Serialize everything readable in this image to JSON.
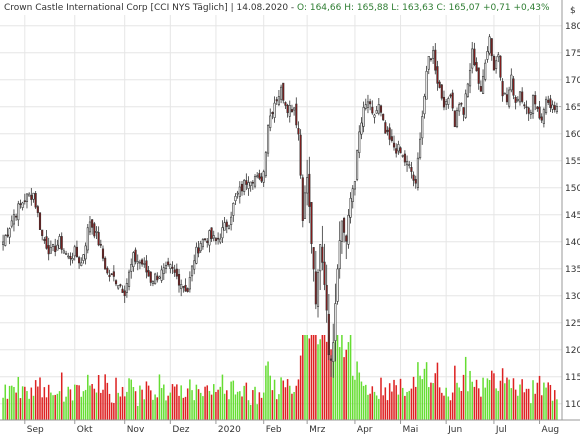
{
  "header": {
    "title": "Crown Castle International Corp [CCI NYS  Täglich]",
    "date": "14.08.2020",
    "quote": "O: 164,66 H: 165,88 L: 163,63 C: 165,07 +0,71 +0,43%"
  },
  "axis": {
    "currency": "$"
  },
  "colors": {
    "up": "#ffffff",
    "down": "#8b1a1a",
    "wick": "#333333",
    "vol_up": "#66dd33",
    "vol_down": "#dd2222",
    "grid": "#e6e6e6"
  },
  "chart_data": {
    "type": "candlestick",
    "ylim": [
      107,
      182
    ],
    "y_ticks": [
      110,
      115,
      120,
      125,
      130,
      135,
      140,
      145,
      150,
      155,
      160,
      165,
      170,
      175,
      180
    ],
    "x_tick_labels": [
      "Sep",
      "Okt",
      "Nov",
      "Dez",
      "2020",
      "Feb",
      "Mrz",
      "Apr",
      "Mai",
      "Jun",
      "Jul",
      "Aug"
    ],
    "x_tick_positions": [
      10,
      33,
      56,
      77,
      98,
      120,
      140,
      162,
      183,
      204,
      226,
      247
    ],
    "num_days": 256,
    "last_close": 165.07,
    "anchors": [
      [
        0,
        140
      ],
      [
        5,
        145
      ],
      [
        10,
        148
      ],
      [
        14,
        149
      ],
      [
        18,
        141
      ],
      [
        22,
        138
      ],
      [
        26,
        140
      ],
      [
        30,
        137
      ],
      [
        33,
        138
      ],
      [
        36,
        136
      ],
      [
        40,
        144
      ],
      [
        44,
        140
      ],
      [
        48,
        134
      ],
      [
        52,
        133
      ],
      [
        56,
        131
      ],
      [
        60,
        137
      ],
      [
        64,
        136
      ],
      [
        68,
        133
      ],
      [
        72,
        134
      ],
      [
        77,
        135
      ],
      [
        81,
        133
      ],
      [
        85,
        131
      ],
      [
        88,
        137
      ],
      [
        91,
        140
      ],
      [
        95,
        141
      ],
      [
        98,
        140
      ],
      [
        101,
        142
      ],
      [
        104,
        144
      ],
      [
        107,
        148
      ],
      [
        110,
        150
      ],
      [
        113,
        152
      ],
      [
        116,
        152
      ],
      [
        118,
        151
      ],
      [
        120,
        153
      ],
      [
        122,
        162
      ],
      [
        125,
        166
      ],
      [
        128,
        168
      ],
      [
        131,
        165
      ],
      [
        134,
        165
      ],
      [
        136,
        160
      ],
      [
        138,
        145
      ],
      [
        140,
        152
      ],
      [
        142,
        140
      ],
      [
        144,
        128
      ],
      [
        146,
        140
      ],
      [
        148,
        133
      ],
      [
        150,
        120
      ],
      [
        151,
        119
      ],
      [
        152,
        122
      ],
      [
        154,
        136
      ],
      [
        156,
        144
      ],
      [
        158,
        140
      ],
      [
        160,
        148
      ],
      [
        162,
        152
      ],
      [
        164,
        160
      ],
      [
        166,
        164
      ],
      [
        168,
        166
      ],
      [
        170,
        163
      ],
      [
        173,
        165
      ],
      [
        176,
        160
      ],
      [
        179,
        158
      ],
      [
        182,
        157
      ],
      [
        185,
        155
      ],
      [
        188,
        153
      ],
      [
        190,
        150
      ],
      [
        192,
        160
      ],
      [
        194,
        167
      ],
      [
        196,
        174
      ],
      [
        198,
        175
      ],
      [
        200,
        170
      ],
      [
        202,
        167
      ],
      [
        204,
        165
      ],
      [
        206,
        168
      ],
      [
        208,
        162
      ],
      [
        210,
        166
      ],
      [
        212,
        164
      ],
      [
        214,
        169
      ],
      [
        216,
        175
      ],
      [
        218,
        172
      ],
      [
        220,
        167
      ],
      [
        222,
        174
      ],
      [
        224,
        178
      ],
      [
        226,
        172
      ],
      [
        228,
        175
      ],
      [
        230,
        168
      ],
      [
        232,
        166
      ],
      [
        234,
        170
      ],
      [
        236,
        166
      ],
      [
        238,
        168
      ],
      [
        240,
        166
      ],
      [
        242,
        163
      ],
      [
        244,
        167
      ],
      [
        246,
        165
      ],
      [
        248,
        162
      ],
      [
        250,
        167
      ],
      [
        252,
        164
      ],
      [
        255,
        165.07
      ]
    ]
  }
}
